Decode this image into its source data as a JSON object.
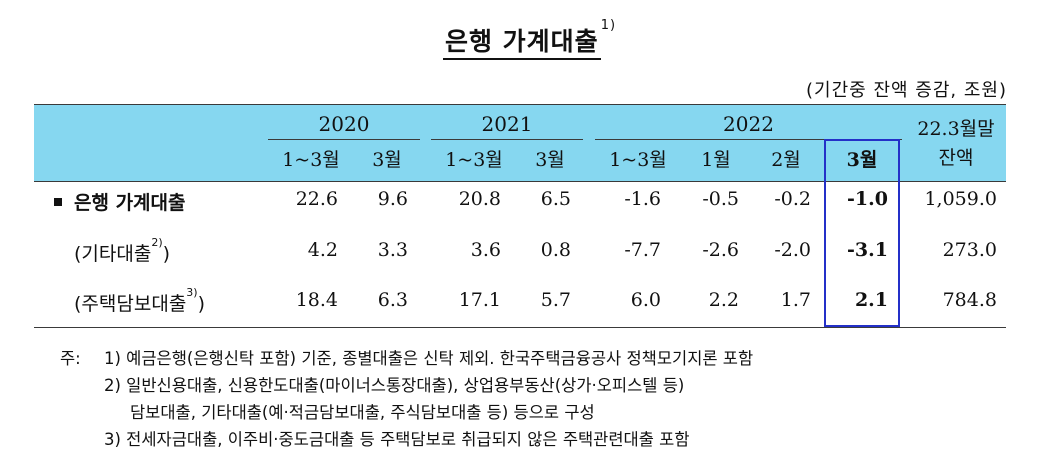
{
  "title": "은행 가계대출",
  "title_note": "1)",
  "unit": "(기간중 잔액 증감, 조원)",
  "years": [
    "2020",
    "2021",
    "2022"
  ],
  "sub_headers": [
    "1~3월",
    "3월",
    "1~3월",
    "3월",
    "1~3월",
    "1월",
    "2월",
    "3월"
  ],
  "last_col": {
    "line1": "22.3월말",
    "line2": "잔액"
  },
  "rows": [
    {
      "label": "은행 가계대출",
      "sup": "",
      "values": [
        "22.6",
        "9.6",
        "20.8",
        "6.5",
        "-1.6",
        "-0.5",
        "-0.2",
        "-1.0",
        "1,059.0"
      ]
    },
    {
      "label": "(기타대출",
      "sup": "2)",
      "close": ")",
      "values": [
        "4.2",
        "3.3",
        "3.6",
        "0.8",
        "-7.7",
        "-2.6",
        "-2.0",
        "-3.1",
        "273.0"
      ]
    },
    {
      "label": "(주택담보대출",
      "sup": "3)",
      "close": ")",
      "values": [
        "18.4",
        "6.3",
        "17.1",
        "5.7",
        "6.0",
        "2.2",
        "1.7",
        "2.1",
        "784.8"
      ]
    }
  ],
  "notes": {
    "prefix": "주:",
    "n1": "1) 예금은행(은행신탁 포함) 기준, 종별대출은 신탁 제외. 한국주택금융공사 정책모기지론 포함",
    "n2a": "2) 일반신용대출, 신용한도대출(마이너스통장대출), 상업용부동산(상가·오피스텔 등)",
    "n2b": "담보대출, 기타대출(예·적금담보대출, 주식담보대출 등) 등으로 구성",
    "n3": "3) 전세자금대출, 이주비·중도금대출 등 주택담보로 취급되지 않은 주택관련대출 포함"
  },
  "colors": {
    "header_bg": "#86d7f0",
    "highlight_border": "#2430c8"
  }
}
